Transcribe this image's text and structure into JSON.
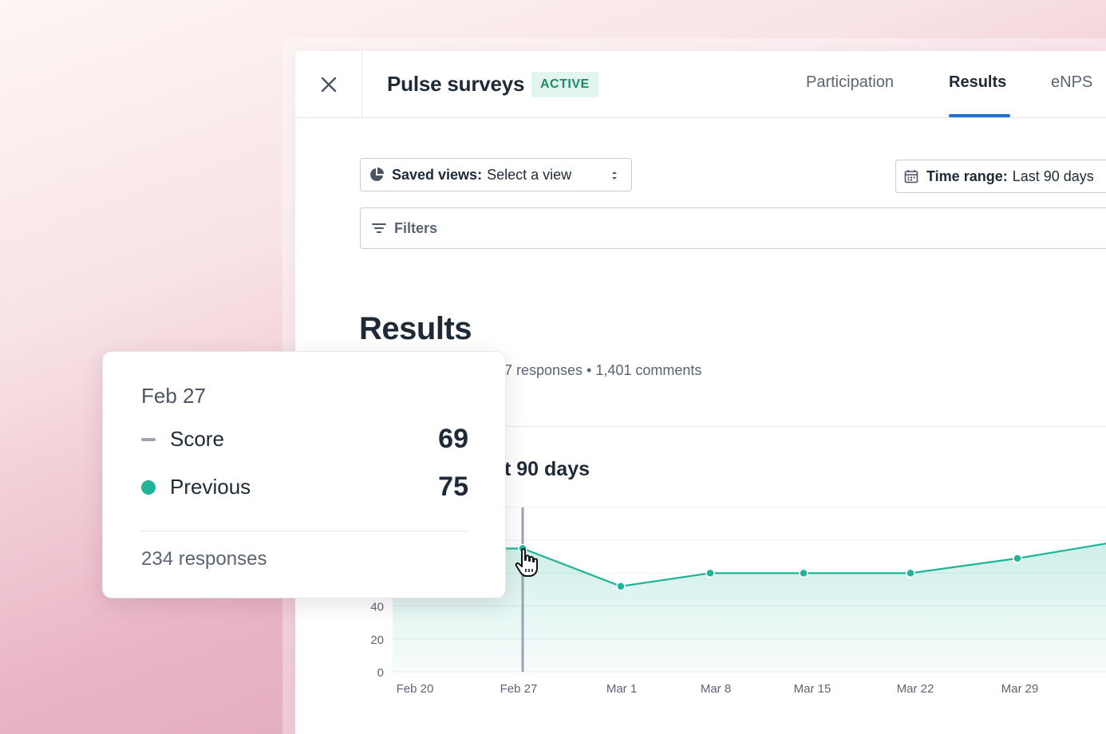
{
  "header": {
    "title": "Pulse surveys",
    "badge": "ACTIVE",
    "tabs": [
      {
        "label": "Participation",
        "active": false
      },
      {
        "label": "Results",
        "active": true
      },
      {
        "label": "eNPS",
        "active": false
      }
    ]
  },
  "controls": {
    "saved_views_label": "Saved views:",
    "saved_views_value": "Select a view",
    "time_range_label": "Time range:",
    "time_range_value": "Last 90 days",
    "filters_label": "Filters"
  },
  "results": {
    "heading": "Results",
    "subtitle": "7 responses • 1,401 comments",
    "chart_heading": "t 90 days"
  },
  "tooltip": {
    "date": "Feb 27",
    "rows": [
      {
        "label": "Score",
        "value": "69",
        "marker": "dash"
      },
      {
        "label": "Previous",
        "value": "75",
        "marker": "dot"
      }
    ],
    "footer": "234 responses"
  },
  "colors": {
    "accent": "#20b497",
    "tab_underline": "#1f6fd6",
    "badge_bg": "#e3f5ef",
    "badge_text": "#1d8a6a"
  },
  "icons": {
    "close": "close-icon",
    "saved_views": "pie-chart-icon",
    "select_arrows": "sort-arrows-icon",
    "calendar": "calendar-icon",
    "filter": "filter-icon",
    "cursor": "hand-pointer-icon"
  },
  "chart_data": {
    "type": "area",
    "y_ticks": [
      "0",
      "20",
      "40"
    ],
    "x_ticks": [
      "Feb 20",
      "Feb 27",
      "Mar 1",
      "Mar 8",
      "Mar 15",
      "Mar 22",
      "Mar 29"
    ],
    "ylim": [
      0,
      100
    ],
    "series": [
      {
        "values": [
          {
            "x": "Feb 27",
            "y": 75
          },
          {
            "x": "Mar 1",
            "y": 52
          },
          {
            "x": "Mar 8",
            "y": 60
          },
          {
            "x": "Mar 15",
            "y": 60
          },
          {
            "x": "Mar 22",
            "y": 60
          },
          {
            "x": "Mar 29",
            "y": 69
          },
          {
            "x": "end",
            "y": 78
          }
        ]
      }
    ],
    "highlight_x": "Feb 27"
  }
}
